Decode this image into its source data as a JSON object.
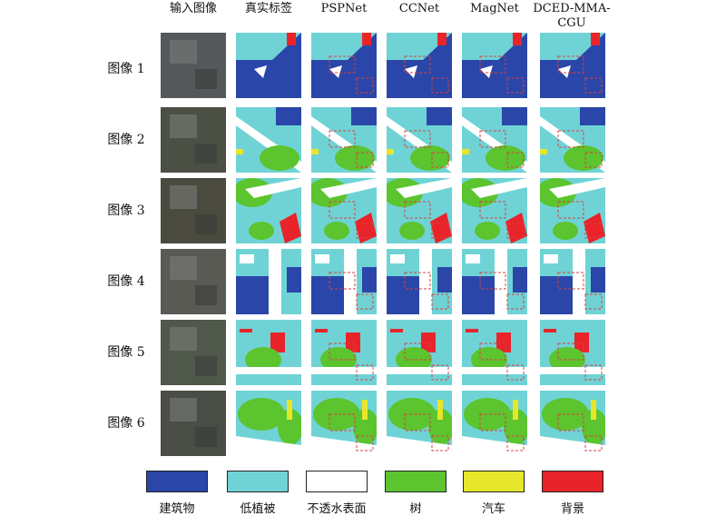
{
  "columns": [
    "输入图像",
    "真实标签",
    "PSPNet",
    "CCNet",
    "MagNet",
    "DCED-MMA-CGU"
  ],
  "rows": [
    "图像 1",
    "图像 2",
    "图像 3",
    "图像 4",
    "图像 5",
    "图像 6"
  ],
  "legend": [
    {
      "label": "建筑物",
      "color": "#2a46a8"
    },
    {
      "label": "低植被",
      "color": "#6fd3d6"
    },
    {
      "label": "不透水表面",
      "color": "#ffffff"
    },
    {
      "label": "树",
      "color": "#5cc42e"
    },
    {
      "label": "汽车",
      "color": "#e6e62a"
    },
    {
      "label": "背景",
      "color": "#e8242a"
    }
  ],
  "highlight_color": "#d94040"
}
